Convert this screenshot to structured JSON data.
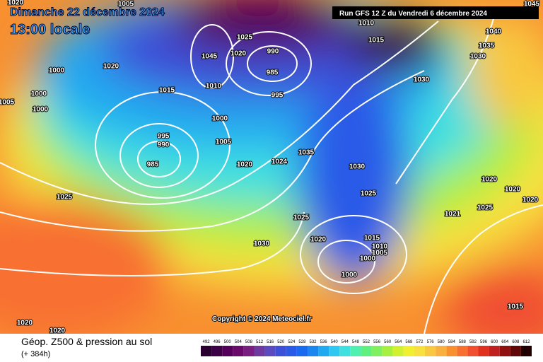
{
  "header": {
    "date": "Dimanche 22 décembre 2024",
    "time": "13:00 locale",
    "run": "Run GFS 12 Z du Vendredi 6 décembre 2024"
  },
  "map": {
    "isobar_labels": [
      1005,
      1045,
      1020,
      1010,
      1015,
      1040,
      1035,
      1030,
      1025,
      1020,
      1045,
      990,
      985,
      995,
      1010,
      1015,
      1000,
      1000,
      1000,
      1005,
      1020,
      1030,
      1000,
      995,
      990,
      985,
      1005,
      1020,
      1024,
      1035,
      1030,
      1025,
      1025,
      1025,
      1020,
      1030,
      1015,
      1010,
      1005,
      1000,
      1000,
      1020,
      1020,
      1020,
      1025,
      1021,
      1015,
      1020,
      1020
    ]
  },
  "copyright": "Copyright © 2024 Meteociel.fr",
  "footer": {
    "title": "Géop. Z500 & pression au sol",
    "lead": "(+ 384h)"
  },
  "legend": {
    "ticks": [
      492,
      496,
      500,
      504,
      508,
      512,
      516,
      520,
      524,
      528,
      532,
      536,
      540,
      544,
      548,
      552,
      556,
      560,
      564,
      568,
      572,
      576,
      580,
      584,
      588,
      592,
      596,
      600,
      604,
      608,
      612
    ],
    "colors": [
      "#2a0030",
      "#3c0046",
      "#54005a",
      "#6a0a6a",
      "#7a1e82",
      "#6e3aa0",
      "#5a4cc0",
      "#3c50d8",
      "#2a5ae8",
      "#1a6af0",
      "#1a86f0",
      "#20a8f0",
      "#30c8f0",
      "#40e0e0",
      "#50f0b0",
      "#60f080",
      "#80f060",
      "#a8f040",
      "#d0f030",
      "#f0f030",
      "#f8e040",
      "#f8c840",
      "#f8b040",
      "#f89030",
      "#f87030",
      "#f05030",
      "#e03020",
      "#c02020",
      "#901010",
      "#600808",
      "#200000"
    ]
  }
}
